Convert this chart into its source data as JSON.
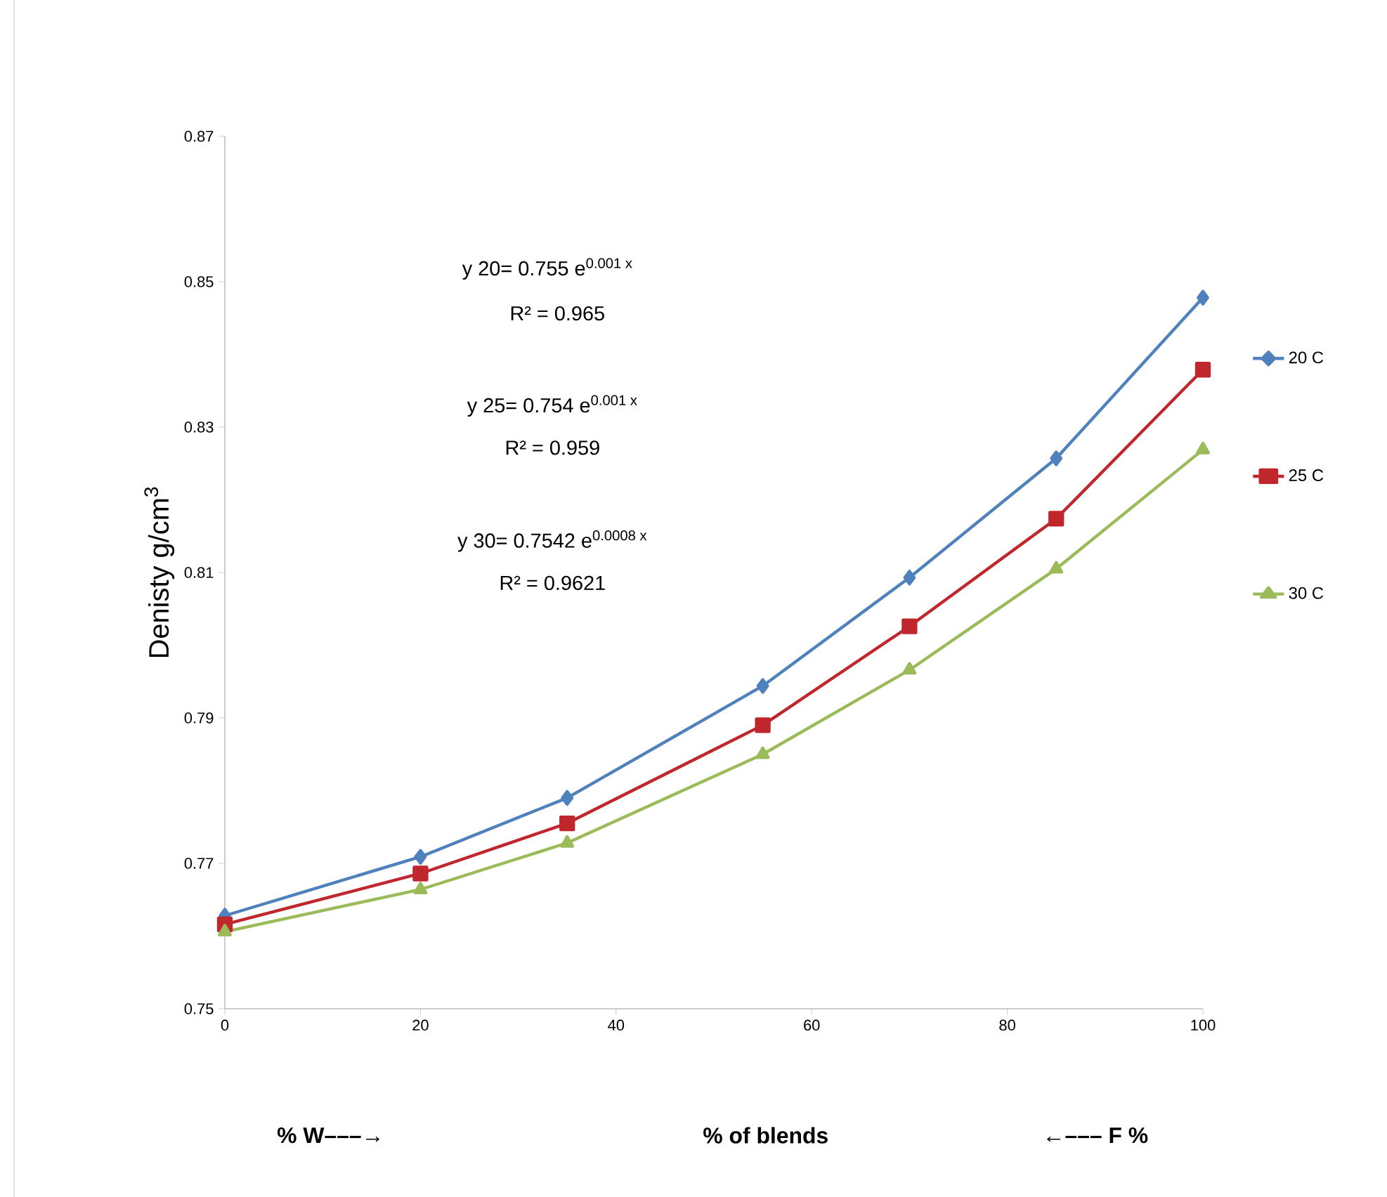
{
  "chart_data": {
    "type": "line",
    "xlabel": "% of blends",
    "ylabel": "Denisty g/cm$^{3}$",
    "x": [
      0,
      20,
      35,
      55,
      70,
      85,
      100
    ],
    "series": [
      {
        "name": "20 C",
        "color": "#4f81bd",
        "marker": "diamond",
        "values": [
          0.7628,
          0.7709,
          0.779,
          0.7944,
          0.8093,
          0.8257,
          0.8478
        ]
      },
      {
        "name": "25 C",
        "color": "#c0272d",
        "marker": "square",
        "values": [
          0.7616,
          0.7686,
          0.7755,
          0.789,
          0.8026,
          0.8174,
          0.8379
        ]
      },
      {
        "name": "30 C",
        "color": "#9bbb59",
        "marker": "triangle",
        "values": [
          0.7606,
          0.7664,
          0.7728,
          0.785,
          0.7966,
          0.8105,
          0.8269
        ]
      }
    ],
    "xlim": [
      0,
      100
    ],
    "xticks": [
      0,
      20,
      40,
      60,
      80,
      100
    ],
    "ylim": [
      0.75,
      0.87
    ],
    "yticks": [
      0.75,
      0.77,
      0.79,
      0.81,
      0.83,
      0.85,
      0.87
    ],
    "grid": false,
    "legend": "right",
    "line_style": "solid",
    "annotations": [
      "y  20= 0.755 e$^{0.001 x}$",
      "R² = 0.965",
      "y 25= 0.754 e$^{0.001 x}$",
      "R² = 0.959",
      "y 30= 0.7542 e$^{0.0008 x}$",
      "R² = 0.9621",
      "% W–––→",
      "←––– F %"
    ]
  }
}
